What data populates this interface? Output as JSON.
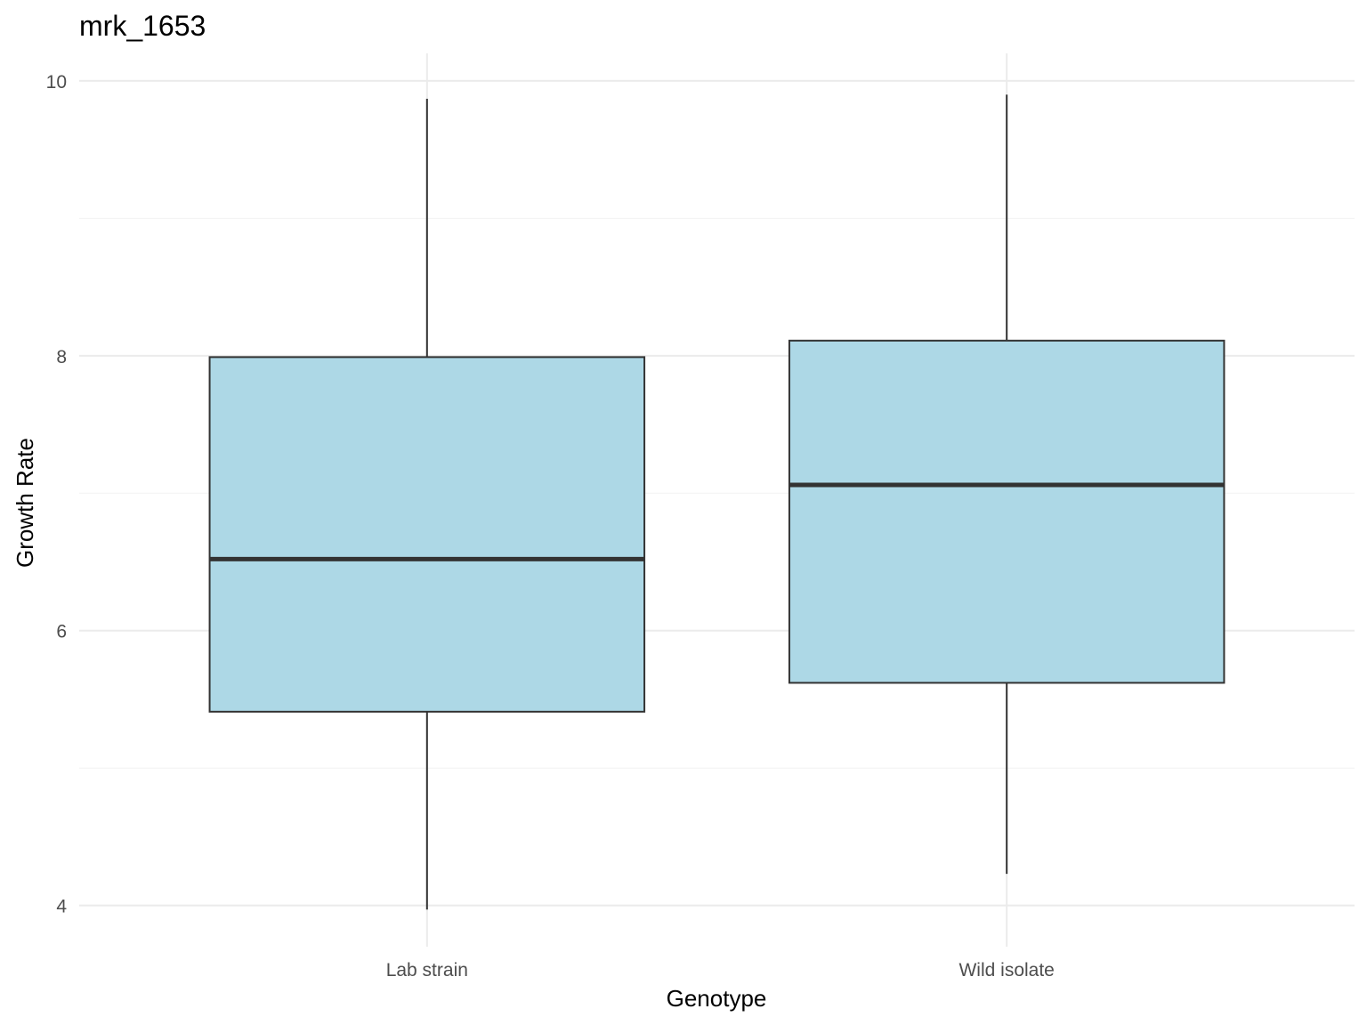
{
  "chart_data": {
    "type": "boxplot",
    "title": "mrk_1653",
    "xlabel": "Genotype",
    "ylabel": "Growth Rate",
    "categories": [
      "Lab strain",
      "Wild isolate"
    ],
    "boxes": [
      {
        "category": "Lab strain",
        "lower_whisker": 3.97,
        "q1": 5.41,
        "median": 6.52,
        "q3": 7.99,
        "upper_whisker": 9.87
      },
      {
        "category": "Wild isolate",
        "lower_whisker": 4.23,
        "q1": 5.62,
        "median": 7.06,
        "q3": 8.11,
        "upper_whisker": 9.9
      }
    ],
    "yticks": [
      4,
      6,
      8,
      10
    ],
    "ytick_labels": [
      "4",
      "6",
      "8",
      "10"
    ],
    "ylim": [
      3.7,
      10.2
    ],
    "fill_color": "#add8e6",
    "line_color": "#333333",
    "grid": true,
    "legend": "none"
  }
}
